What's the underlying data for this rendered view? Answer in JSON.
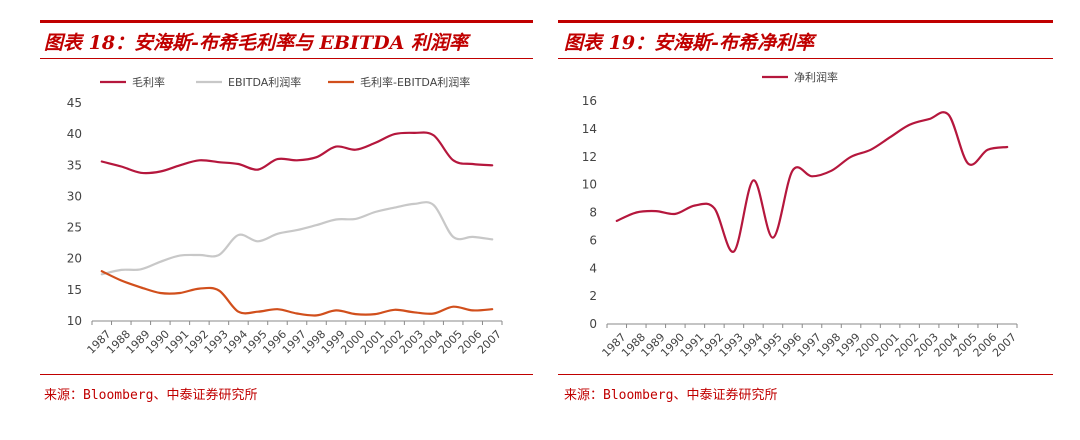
{
  "left": {
    "title": "图表 18：安海斯-布希毛利率与 EBITDA 利润率",
    "source": "来源：Bloomberg、中泰证券研究所"
  },
  "right": {
    "title": "图表 19：安海斯-布希净利率",
    "source": "来源：Bloomberg、中泰证券研究所"
  },
  "chart_data": [
    {
      "type": "line",
      "title": "",
      "xlabel": "",
      "ylabel": "",
      "ylim": [
        10,
        45
      ],
      "yticks": [
        10,
        15,
        20,
        25,
        30,
        35,
        40,
        45
      ],
      "categories": [
        "1987",
        "1988",
        "1989",
        "1990",
        "1991",
        "1992",
        "1993",
        "1994",
        "1995",
        "1996",
        "1997",
        "1998",
        "1999",
        "2000",
        "2001",
        "2002",
        "2003",
        "2004",
        "2005",
        "2006",
        "2007"
      ],
      "legend_position": "top",
      "series": [
        {
          "name": "毛利率",
          "color": "#b5173d",
          "values": [
            35.6,
            34.8,
            33.8,
            34.0,
            35.0,
            35.8,
            35.5,
            35.2,
            34.3,
            36.0,
            35.8,
            36.3,
            38.0,
            37.5,
            38.6,
            40.0,
            40.2,
            39.8,
            35.8,
            35.2,
            35.0
          ]
        },
        {
          "name": "EBITDA利润率",
          "color": "#c8c8c8",
          "values": [
            17.5,
            18.2,
            18.3,
            19.5,
            20.5,
            20.6,
            20.6,
            23.8,
            22.8,
            24.0,
            24.6,
            25.4,
            26.3,
            26.4,
            27.5,
            28.2,
            28.8,
            28.6,
            23.5,
            23.5,
            23.1
          ]
        },
        {
          "name": "毛利率-EBITDA利润率",
          "color": "#d14f1c",
          "values": [
            18.0,
            16.5,
            15.4,
            14.5,
            14.5,
            15.2,
            14.9,
            11.5,
            11.5,
            11.9,
            11.2,
            10.9,
            11.7,
            11.1,
            11.1,
            11.8,
            11.4,
            11.2,
            12.3,
            11.7,
            11.9
          ]
        }
      ]
    },
    {
      "type": "line",
      "title": "",
      "xlabel": "",
      "ylabel": "",
      "ylim": [
        0,
        16
      ],
      "yticks": [
        0,
        2,
        4,
        6,
        8,
        10,
        12,
        14,
        16
      ],
      "categories": [
        "1987",
        "1988",
        "1989",
        "1990",
        "1991",
        "1992",
        "1993",
        "1994",
        "1995",
        "1996",
        "1997",
        "1998",
        "1999",
        "2000",
        "2001",
        "2002",
        "2003",
        "2004",
        "2005",
        "2006",
        "2007"
      ],
      "legend_position": "top",
      "series": [
        {
          "name": "净利润率",
          "color": "#b5173d",
          "values": [
            7.4,
            8.0,
            8.1,
            7.9,
            8.5,
            8.3,
            5.2,
            10.3,
            6.2,
            11.0,
            10.6,
            11.0,
            12.0,
            12.5,
            13.4,
            14.3,
            14.7,
            15.0,
            11.5,
            12.5,
            12.7
          ]
        }
      ]
    }
  ]
}
